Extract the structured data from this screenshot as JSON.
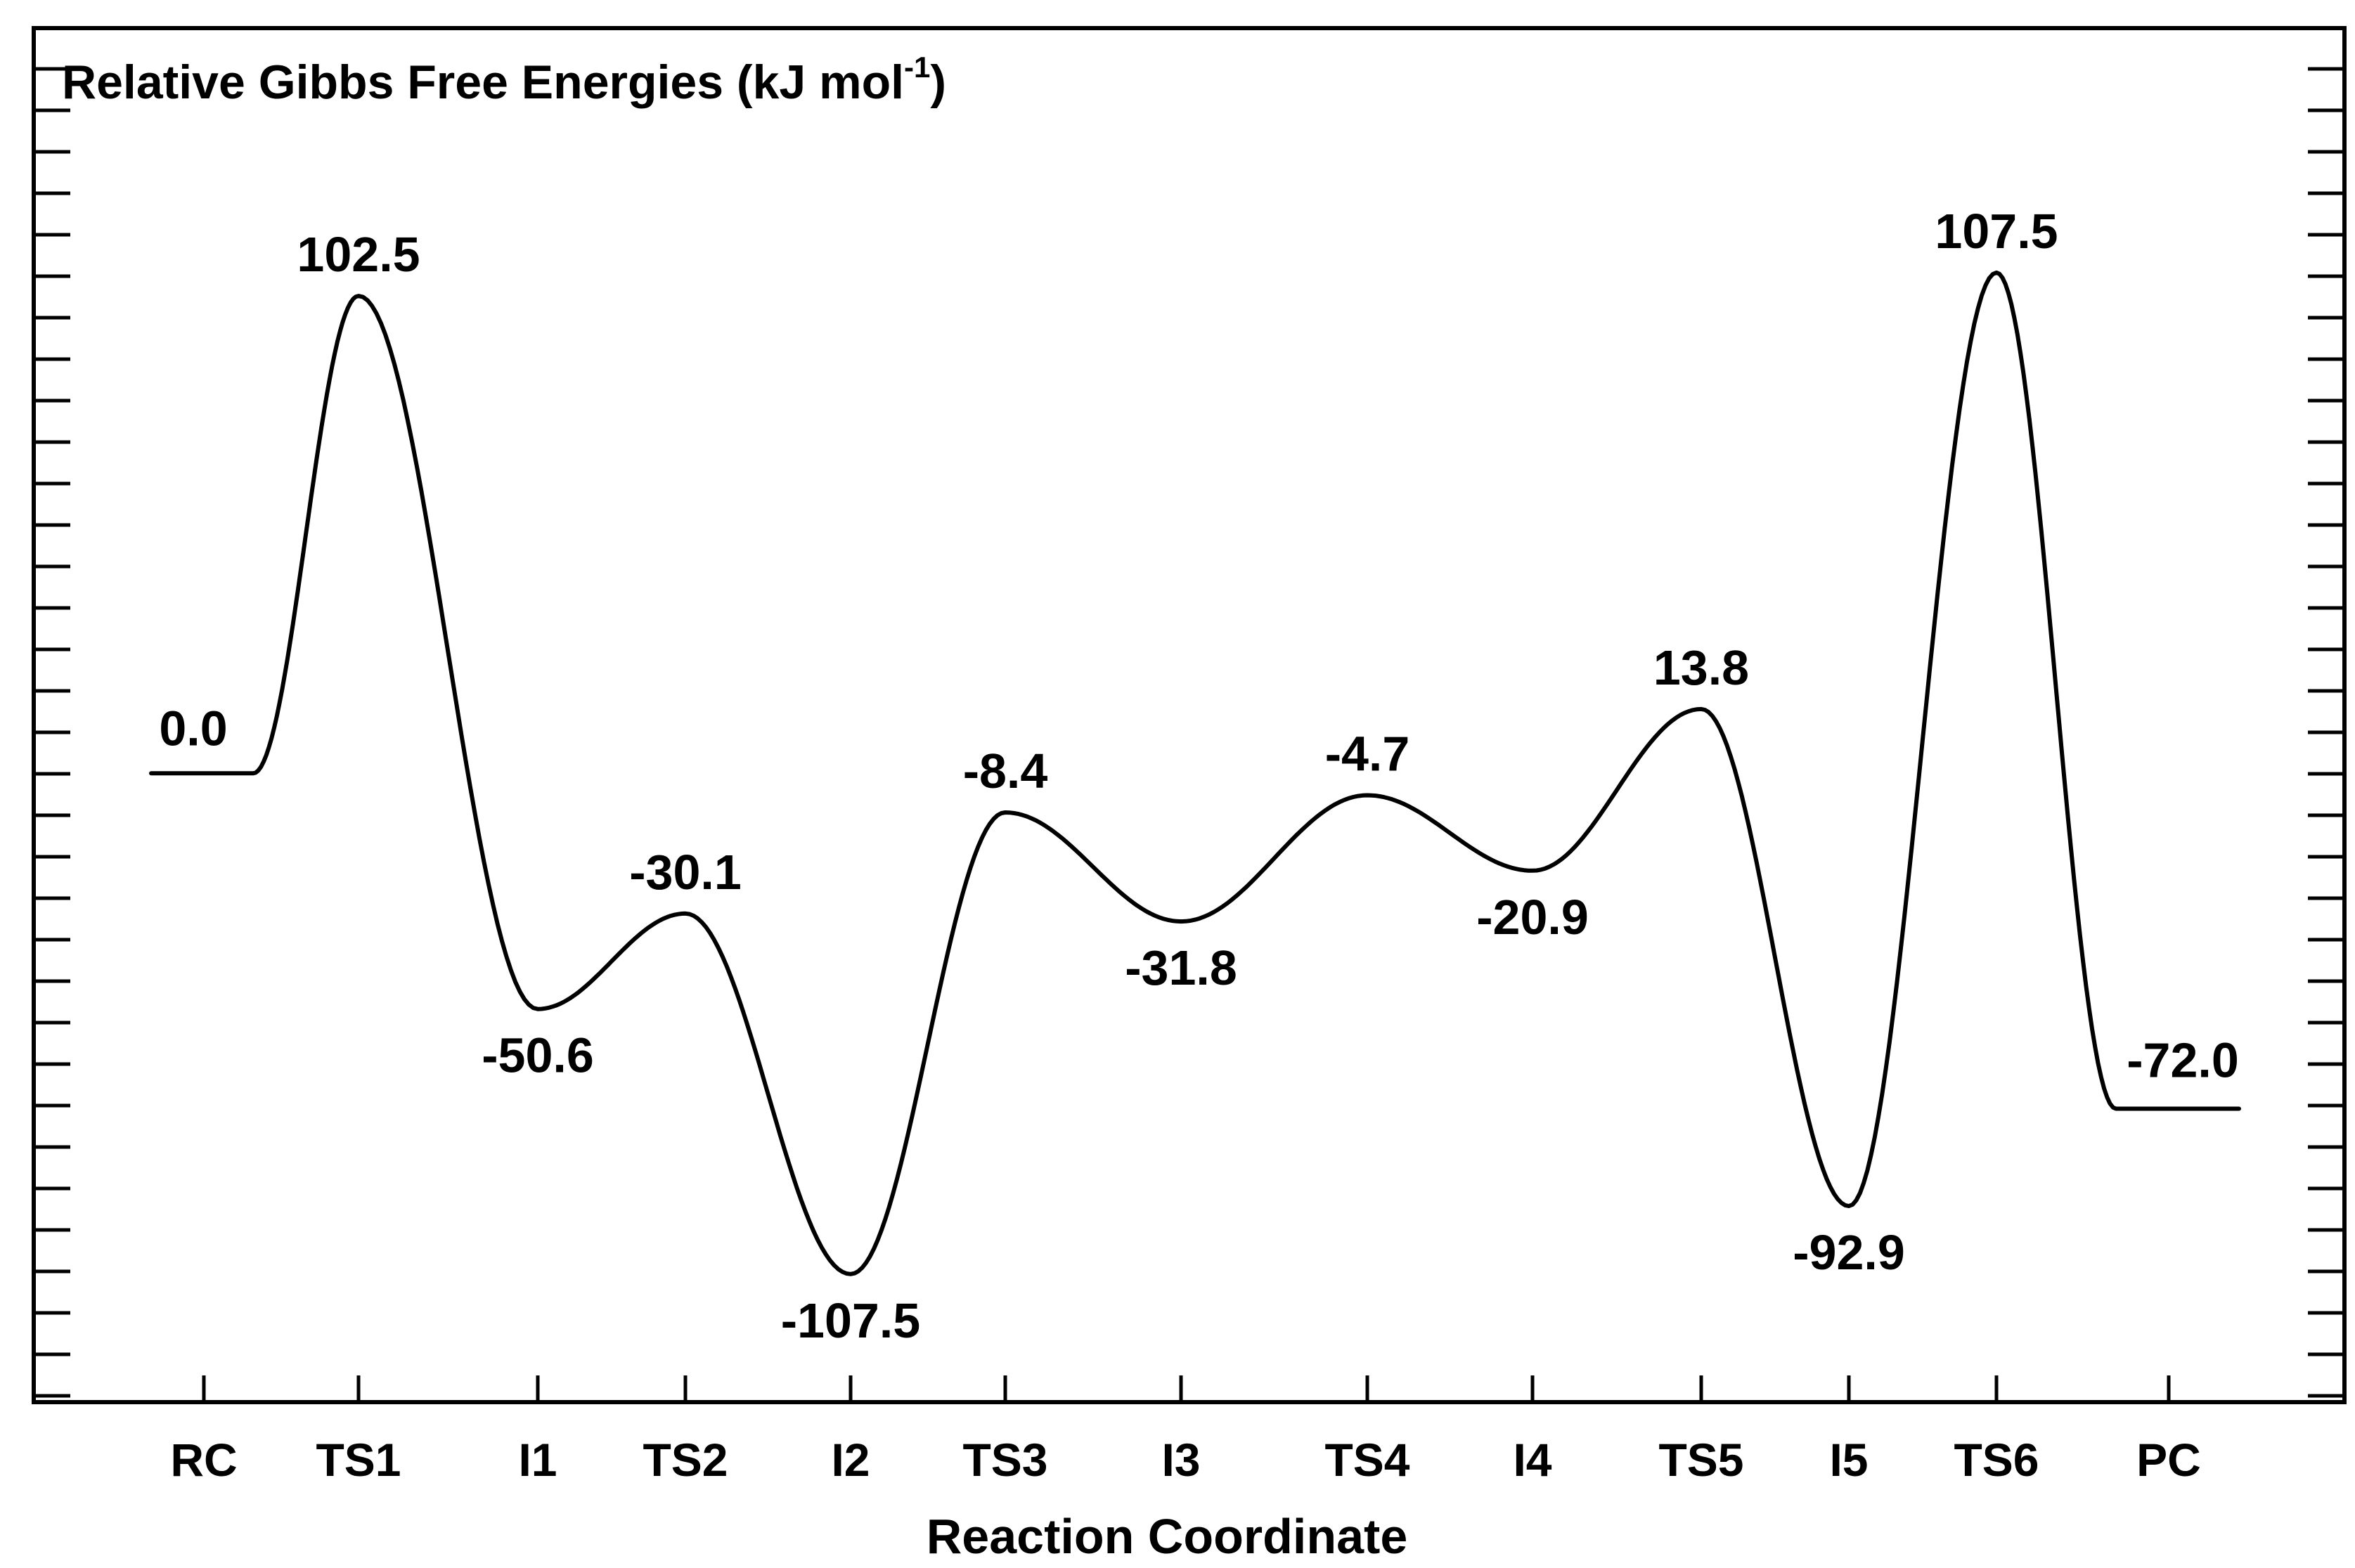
{
  "chart_data": {
    "type": "line",
    "title": "Relative Gibbs Free Energies (kJ mol",
    "title_superscript": "-1",
    "title_close": ")",
    "xlabel": "Reaction Coordinate",
    "ylabel": "",
    "categories": [
      "RC",
      "TS1",
      "I1",
      "TS2",
      "I2",
      "TS3",
      "I3",
      "TS4",
      "I4",
      "TS5",
      "I5",
      "TS6",
      "PC"
    ],
    "values": [
      0.0,
      102.5,
      -50.6,
      -30.1,
      -107.5,
      -8.4,
      -31.8,
      -4.7,
      -20.9,
      13.8,
      -92.9,
      107.5,
      -72.0
    ],
    "labels": [
      "0.0",
      "102.5",
      "-50.6",
      "-30.1",
      "-107.5",
      "-8.4",
      "-31.8",
      "-4.7",
      "-20.9",
      "13.8",
      "-92.9",
      "107.5",
      "-72.0"
    ],
    "ylim": [
      -135,
      160
    ],
    "grid": false,
    "series_color": "#000000"
  }
}
